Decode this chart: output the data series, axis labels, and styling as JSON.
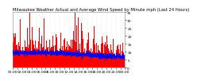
{
  "title": "Milwaukee Weather Actual and Average Wind Speed by Minute mph (Last 24 Hours)",
  "n_points": 1440,
  "y_max": 35,
  "y_min": 0,
  "actual_color": "#FF0000",
  "average_color": "#0000EE",
  "background_color": "#FFFFFF",
  "plot_bg_color": "#FFFFFF",
  "grid_color": "#BBBBBB",
  "title_fontsize": 3.8,
  "tick_fontsize": 3.2,
  "avg_wind_mean": 8,
  "avg_wind_std": 1.5,
  "actual_wind_extra_std": 6,
  "yticks": [
    0,
    5,
    10,
    15,
    20,
    25,
    30,
    35
  ]
}
